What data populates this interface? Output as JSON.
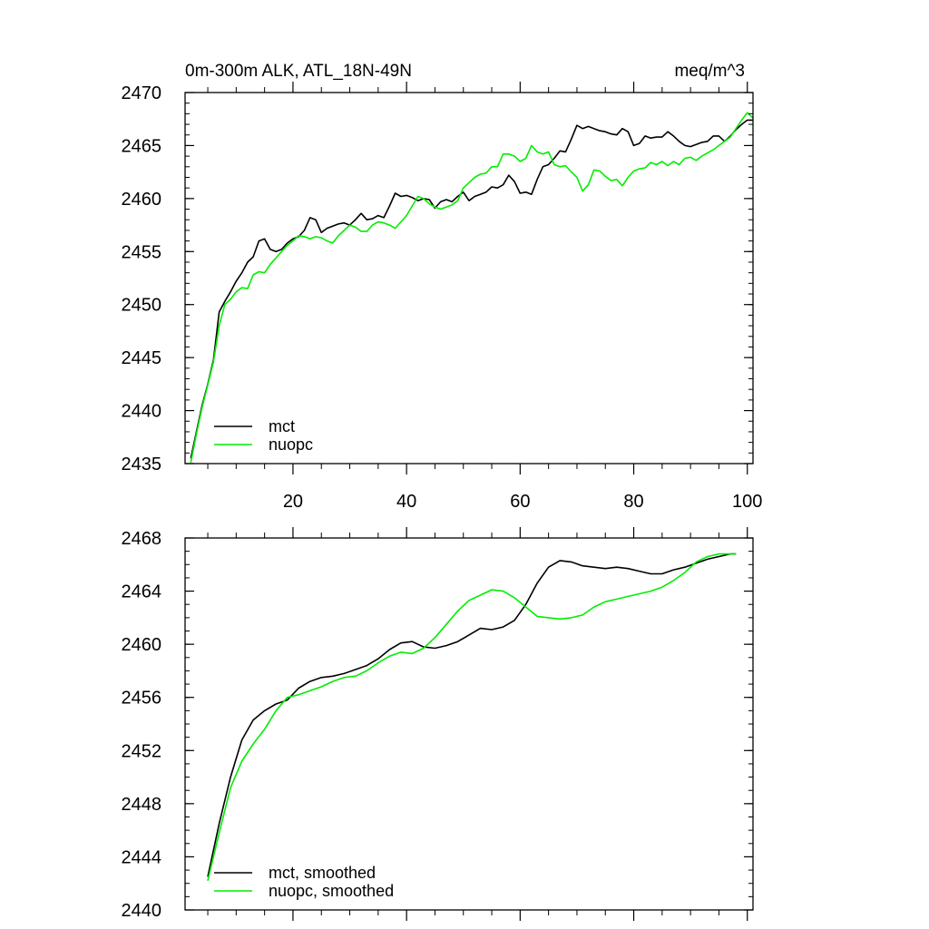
{
  "chart_data": [
    {
      "type": "line",
      "title_left": "0m-300m ALK, ATL_18N-49N",
      "title_right": "meq/m^3",
      "xlabel": "",
      "ylabel": "",
      "xlim": [
        1,
        101
      ],
      "ylim": [
        2435,
        2470
      ],
      "x_ticks": [
        20,
        40,
        60,
        80,
        100
      ],
      "y_ticks": [
        2435,
        2440,
        2445,
        2450,
        2455,
        2460,
        2465,
        2470
      ],
      "legend_position": "bottom-left",
      "series": [
        {
          "name": "mct",
          "color": "#000000",
          "x": [
            2,
            3,
            4,
            5,
            6,
            7,
            8,
            9,
            10,
            11,
            12,
            13,
            14,
            15,
            16,
            17,
            18,
            19,
            20,
            21,
            22,
            23,
            24,
            25,
            26,
            27,
            28,
            29,
            30,
            31,
            32,
            33,
            34,
            35,
            36,
            37,
            38,
            39,
            40,
            41,
            42,
            43,
            44,
            45,
            46,
            47,
            48,
            49,
            50,
            51,
            52,
            53,
            54,
            55,
            56,
            57,
            58,
            59,
            60,
            61,
            62,
            63,
            64,
            65,
            66,
            67,
            68,
            69,
            70,
            71,
            72,
            73,
            74,
            75,
            76,
            77,
            78,
            79,
            80,
            81,
            82,
            83,
            84,
            85,
            86,
            87,
            88,
            89,
            90,
            91,
            92,
            93,
            94,
            95,
            96,
            97,
            98,
            99,
            100,
            101
          ],
          "values": [
            2435.5,
            2438,
            2440.5,
            2442.5,
            2444.8,
            2449.3,
            2450.3,
            2451.2,
            2452.2,
            2453.0,
            2454.0,
            2454.5,
            2456.0,
            2456.2,
            2455.2,
            2455.0,
            2455.2,
            2455.8,
            2456.2,
            2456.4,
            2457.0,
            2458.2,
            2458.0,
            2456.8,
            2457.2,
            2457.4,
            2457.6,
            2457.7,
            2457.5,
            2458.0,
            2458.6,
            2458.0,
            2458.1,
            2458.4,
            2458.2,
            2459.3,
            2460.5,
            2460.2,
            2460.3,
            2460.1,
            2459.8,
            2460.0,
            2459.9,
            2459.1,
            2459.7,
            2459.9,
            2459.7,
            2460.2,
            2460.6,
            2459.8,
            2460.2,
            2460.4,
            2460.6,
            2461.1,
            2461.0,
            2461.3,
            2462.2,
            2461.6,
            2460.5,
            2460.6,
            2460.4,
            2461.8,
            2463.0,
            2463.2,
            2463.8,
            2464.5,
            2464.4,
            2465.6,
            2466.9,
            2466.6,
            2466.8,
            2466.6,
            2466.4,
            2466.3,
            2466.1,
            2466.0,
            2466.6,
            2466.3,
            2465.0,
            2465.2,
            2465.9,
            2465.7,
            2465.8,
            2465.8,
            2466.3,
            2465.9,
            2465.4,
            2465.0,
            2464.9,
            2465.1,
            2465.3,
            2465.4,
            2465.9,
            2465.9,
            2465.4,
            2465.9,
            2466.5,
            2467.0,
            2467.4,
            2467.4
          ]
        },
        {
          "name": "nuopc",
          "color": "#00ee00",
          "x": [
            2,
            3,
            4,
            5,
            6,
            7,
            8,
            9,
            10,
            11,
            12,
            13,
            14,
            15,
            16,
            17,
            18,
            19,
            20,
            21,
            22,
            23,
            24,
            25,
            26,
            27,
            28,
            29,
            30,
            31,
            32,
            33,
            34,
            35,
            36,
            37,
            38,
            39,
            40,
            41,
            42,
            43,
            44,
            45,
            46,
            47,
            48,
            49,
            50,
            51,
            52,
            53,
            54,
            55,
            56,
            57,
            58,
            59,
            60,
            61,
            62,
            63,
            64,
            65,
            66,
            67,
            68,
            69,
            70,
            71,
            72,
            73,
            74,
            75,
            76,
            77,
            78,
            79,
            80,
            81,
            82,
            83,
            84,
            85,
            86,
            87,
            88,
            89,
            90,
            91,
            92,
            93,
            94,
            95,
            96,
            97,
            98,
            99,
            100,
            101
          ],
          "values": [
            2435.1,
            2437.8,
            2440.3,
            2442.4,
            2444.6,
            2448.0,
            2450.0,
            2450.5,
            2451.2,
            2451.6,
            2451.5,
            2452.8,
            2453.1,
            2453.0,
            2453.8,
            2454.4,
            2455.0,
            2455.6,
            2456.0,
            2456.5,
            2456.4,
            2456.2,
            2456.4,
            2456.3,
            2456.0,
            2455.8,
            2456.5,
            2457.0,
            2457.5,
            2457.3,
            2456.9,
            2456.9,
            2457.5,
            2457.8,
            2457.7,
            2457.5,
            2457.2,
            2457.8,
            2458.4,
            2459.3,
            2460.2,
            2460.0,
            2459.5,
            2459.2,
            2459.0,
            2459.2,
            2459.4,
            2459.8,
            2461.0,
            2461.5,
            2462.0,
            2462.3,
            2462.4,
            2463.0,
            2463.0,
            2464.2,
            2464.2,
            2464.0,
            2463.5,
            2463.8,
            2465.0,
            2464.4,
            2464.2,
            2464.4,
            2463.2,
            2463.0,
            2463.1,
            2462.5,
            2462.0,
            2460.7,
            2461.3,
            2462.7,
            2462.6,
            2462.1,
            2461.7,
            2461.8,
            2461.2,
            2462.0,
            2462.6,
            2462.8,
            2462.9,
            2463.4,
            2463.2,
            2463.5,
            2463.1,
            2463.5,
            2463.2,
            2463.8,
            2463.9,
            2463.6,
            2464.0,
            2464.3,
            2464.6,
            2465.0,
            2465.4,
            2465.8,
            2466.6,
            2467.4,
            2468.1,
            2467.6
          ]
        }
      ]
    },
    {
      "type": "line",
      "xlabel": "",
      "ylabel": "",
      "xlim": [
        1,
        101
      ],
      "ylim": [
        2440,
        2468
      ],
      "x_ticks": [
        20,
        40,
        60,
        80,
        100
      ],
      "y_ticks": [
        2440,
        2444,
        2448,
        2452,
        2456,
        2460,
        2464,
        2468
      ],
      "legend_position": "bottom-left",
      "series": [
        {
          "name": "mct, smoothed",
          "color": "#000000",
          "x": [
            5,
            7,
            9,
            11,
            13,
            15,
            17,
            19,
            21,
            23,
            25,
            27,
            29,
            31,
            33,
            35,
            37,
            39,
            41,
            43,
            45,
            47,
            49,
            51,
            53,
            55,
            57,
            59,
            61,
            63,
            65,
            67,
            69,
            71,
            73,
            75,
            77,
            79,
            81,
            83,
            85,
            87,
            89,
            91,
            93,
            95,
            97,
            98
          ],
          "values": [
            2442.5,
            2446.5,
            2450.0,
            2452.8,
            2454.3,
            2455.0,
            2455.5,
            2455.8,
            2456.7,
            2457.2,
            2457.5,
            2457.6,
            2457.8,
            2458.1,
            2458.4,
            2458.9,
            2459.6,
            2460.1,
            2460.2,
            2459.8,
            2459.7,
            2459.9,
            2460.2,
            2460.7,
            2461.2,
            2461.1,
            2461.3,
            2461.8,
            2463.0,
            2464.6,
            2465.8,
            2466.3,
            2466.2,
            2465.9,
            2465.8,
            2465.7,
            2465.8,
            2465.7,
            2465.5,
            2465.3,
            2465.3,
            2465.6,
            2465.8,
            2466.1,
            2466.4,
            2466.6,
            2466.8,
            2466.8
          ]
        },
        {
          "name": "nuopc, smoothed",
          "color": "#00ee00",
          "x": [
            5,
            7,
            9,
            11,
            13,
            15,
            17,
            19,
            21,
            23,
            25,
            27,
            29,
            31,
            33,
            35,
            37,
            39,
            41,
            43,
            45,
            47,
            49,
            51,
            53,
            55,
            57,
            59,
            61,
            63,
            65,
            67,
            69,
            71,
            73,
            75,
            77,
            79,
            81,
            83,
            85,
            87,
            89,
            91,
            93,
            95,
            97,
            98
          ],
          "values": [
            2442.2,
            2445.8,
            2449.2,
            2451.2,
            2452.5,
            2453.6,
            2455.0,
            2456.0,
            2456.2,
            2456.5,
            2456.8,
            2457.2,
            2457.5,
            2457.6,
            2458.0,
            2458.6,
            2459.1,
            2459.4,
            2459.3,
            2459.7,
            2460.5,
            2461.5,
            2462.5,
            2463.3,
            2463.7,
            2464.1,
            2464.0,
            2463.5,
            2462.8,
            2462.1,
            2462.0,
            2461.9,
            2462.0,
            2462.2,
            2462.8,
            2463.2,
            2463.4,
            2463.6,
            2463.8,
            2464.0,
            2464.3,
            2464.8,
            2465.4,
            2466.2,
            2466.6,
            2466.8,
            2466.8,
            2466.8
          ]
        }
      ]
    }
  ]
}
